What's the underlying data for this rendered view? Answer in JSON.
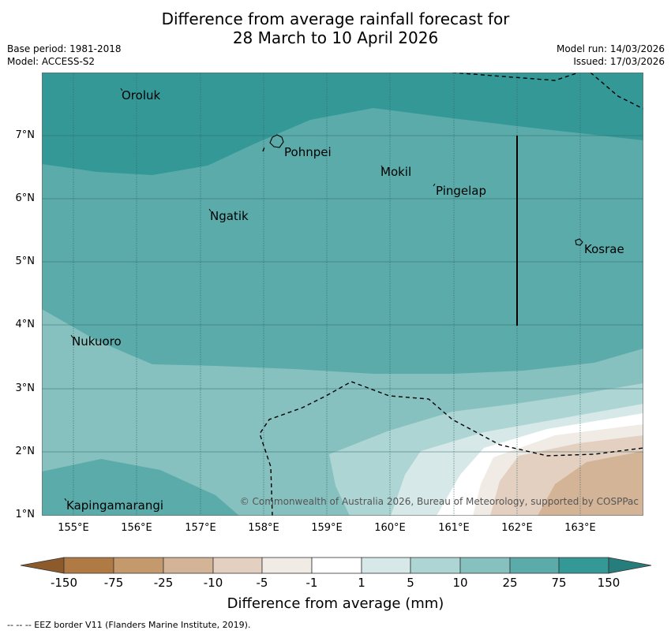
{
  "title": {
    "line1": "Difference from average rainfall forecast for",
    "line2": "28 March to 10 April 2026"
  },
  "meta": {
    "base_period": "Base period: 1981-2018",
    "model": "Model: ACCESS-S2",
    "model_run": "Model run: 14/03/2026",
    "issued": "Issued: 17/03/2026"
  },
  "axes": {
    "lat_labels": [
      "7°N",
      "6°N",
      "5°N",
      "4°N",
      "3°N",
      "2°N",
      "1°N"
    ],
    "lon_labels": [
      "155°E",
      "156°E",
      "157°E",
      "158°E",
      "159°E",
      "160°E",
      "161°E",
      "162°E",
      "163°E"
    ]
  },
  "places": [
    {
      "name": "Oroluk"
    },
    {
      "name": "Pohnpei"
    },
    {
      "name": "Mokil"
    },
    {
      "name": "Pingelap"
    },
    {
      "name": "Ngatik"
    },
    {
      "name": "Kosrae"
    },
    {
      "name": "Nukuoro"
    },
    {
      "name": "Kapingamarangi"
    }
  ],
  "copyright": "© Commonwealth of Australia 2026, Bureau of Meteorology, supported by COSPPac",
  "colorbar": {
    "labels": [
      "-150",
      "-75",
      "-25",
      "-10",
      "-5",
      "-1",
      "1",
      "5",
      "10",
      "25",
      "75",
      "150"
    ],
    "colors": {
      "ext_low": "#8c5a2b",
      "b1": "#b07a45",
      "b2": "#c4996c",
      "b3": "#d4b496",
      "b4": "#e4d0c0",
      "b5": "#f1ebe6",
      "b6": "#ffffff",
      "b7": "#d6e9e8",
      "b8": "#add5d4",
      "b9": "#86c1c0",
      "b10": "#5babab",
      "b11": "#339896",
      "ext_high": "#267d7b"
    },
    "title": "Difference from average (mm)"
  },
  "eez_note": "--  --  -- EEZ border V11 (Flanders Marine Institute, 2019)."
}
